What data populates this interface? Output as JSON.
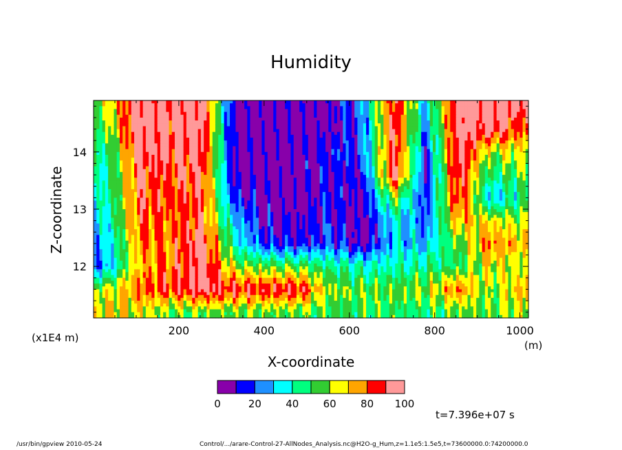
{
  "chart_data": {
    "type": "heatmap",
    "title": "Humidity",
    "xlabel": "X-coordinate",
    "ylabel": "Z-coordinate",
    "x_units": "(m)",
    "y_scale_note": "(x1E4 m)",
    "xlim": [
      0,
      1020
    ],
    "ylim": [
      11.1,
      14.9
    ],
    "x_ticks": [
      200,
      400,
      600,
      800,
      1000
    ],
    "y_ticks": [
      12,
      13,
      14
    ],
    "colorbar": {
      "levels": [
        0,
        10,
        20,
        30,
        40,
        50,
        60,
        70,
        80,
        90,
        100
      ],
      "tick_labels": [
        "0",
        "20",
        "40",
        "60",
        "80",
        "100"
      ],
      "colors": [
        "#8800aa",
        "#0000ff",
        "#1e90ff",
        "#00ffff",
        "#00ff7f",
        "#32cd32",
        "#ffff00",
        "#ffa500",
        "#ff0000",
        "#ff9999"
      ]
    },
    "grid_values_note": "rows: z from 14.8 down to 11.2 (step 0.4); cols: x from 30 to 1005 (step 75); humidity %",
    "grid": {
      "x": [
        30,
        105,
        180,
        255,
        330,
        405,
        480,
        555,
        630,
        705,
        780,
        855,
        930,
        1005
      ],
      "z": [
        14.8,
        14.4,
        14.0,
        13.6,
        13.2,
        12.8,
        12.4,
        12.0,
        11.6,
        11.2
      ],
      "values": [
        [
          60,
          98,
          96,
          97,
          5,
          5,
          5,
          8,
          25,
          90,
          30,
          98,
          96,
          92
        ],
        [
          55,
          95,
          94,
          96,
          5,
          5,
          5,
          6,
          20,
          92,
          25,
          97,
          95,
          80
        ],
        [
          45,
          92,
          90,
          92,
          5,
          5,
          5,
          15,
          20,
          94,
          15,
          96,
          60,
          65
        ],
        [
          40,
          88,
          85,
          90,
          5,
          5,
          5,
          12,
          12,
          95,
          12,
          93,
          45,
          55
        ],
        [
          40,
          85,
          82,
          88,
          15,
          5,
          5,
          15,
          5,
          60,
          15,
          90,
          30,
          45
        ],
        [
          35,
          82,
          80,
          85,
          30,
          10,
          8,
          15,
          5,
          35,
          20,
          75,
          65,
          60
        ],
        [
          30,
          75,
          78,
          95,
          40,
          15,
          12,
          20,
          5,
          30,
          30,
          55,
          80,
          70
        ],
        [
          25,
          70,
          80,
          95,
          60,
          55,
          55,
          45,
          40,
          40,
          45,
          50,
          65,
          60
        ],
        [
          60,
          80,
          85,
          95,
          88,
          88,
          90,
          60,
          55,
          55,
          60,
          80,
          55,
          75
        ],
        [
          70,
          65,
          55,
          55,
          55,
          55,
          55,
          50,
          50,
          50,
          45,
          55,
          55,
          60
        ]
      ]
    }
  },
  "annotations": {
    "time": "t=7.396e+07 s",
    "footer_left": "/usr/bin/gpview   2010-05-24",
    "footer_right": "Control/.../arare-Control-27-AllNodes_Analysis.nc@H2O-g_Hum,z=1.1e5:1.5e5,t=73600000.0:74200000.0"
  }
}
